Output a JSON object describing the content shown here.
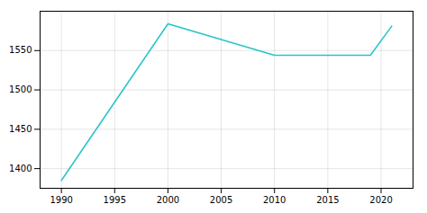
{
  "chart_data": {
    "type": "line",
    "x": [
      1990,
      2000,
      2010,
      2019,
      2021
    ],
    "values": [
      1385,
      1584,
      1544,
      1544,
      1581
    ],
    "color": "#25C4C8",
    "xlim": [
      1988,
      2023
    ],
    "ylim": [
      1375,
      1600
    ],
    "xticks": [
      1990,
      1995,
      2000,
      2005,
      2010,
      2015,
      2020
    ],
    "yticks": [
      1400,
      1450,
      1500,
      1550
    ],
    "grid": true
  }
}
